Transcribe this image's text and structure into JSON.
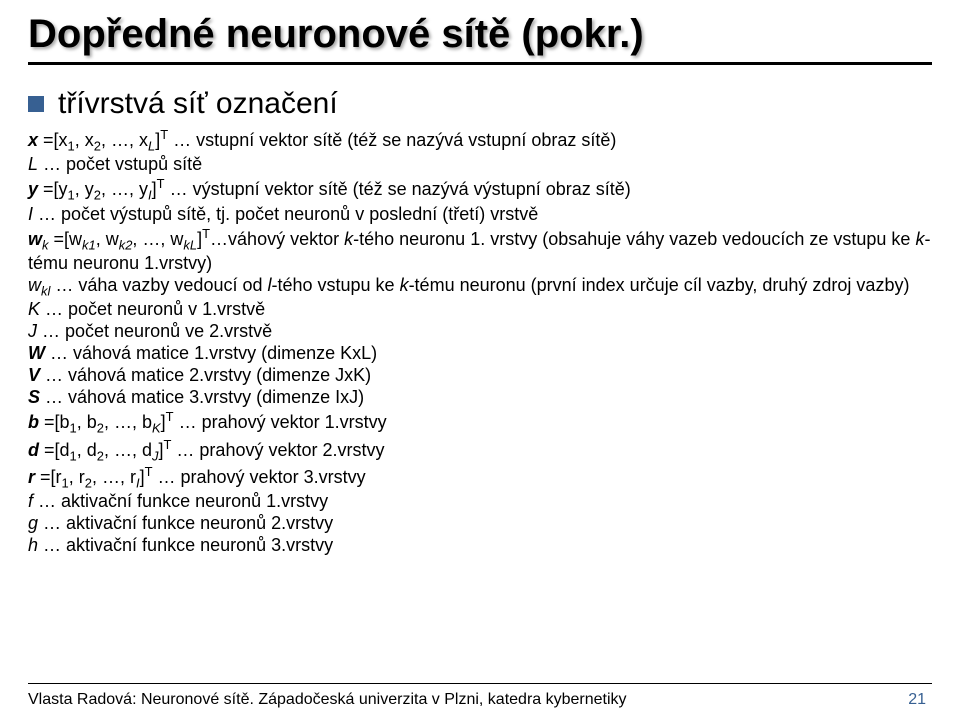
{
  "colors": {
    "bullet": "#376092",
    "pageNumber": "#376092",
    "text": "#000000",
    "background": "#ffffff"
  },
  "typography": {
    "titleFontSize": 40,
    "subtitleFontSize": 30,
    "bodyFontSize": 18,
    "footerFontSize": 16
  },
  "title": "Dopředné neuronové sítě (pokr.)",
  "subtitle": "třívrstvá síť označení",
  "lines": {
    "x_pre": "x",
    "x_sub": "=[x",
    "x_sub1": "1",
    "x_mid": ", x",
    "x_sub2": "2",
    "x_mid2": ", …, x",
    "x_subL": "L",
    "x_sup": "T",
    "x_post": " … vstupní vektor sítě (též se nazývá vstupní obraz sítě)",
    "L_sym": "L",
    "L_post": " … počet vstupů sítě",
    "y_pre": "y",
    "y_sub": "=[y",
    "y_sub1": "1",
    "y_mid": ", y",
    "y_sub2": "2",
    "y_mid2": ", …, y",
    "y_subI": "I",
    "y_sup": "T",
    "y_post": " … výstupní vektor sítě (též se nazývá výstupní obraz sítě)",
    "I_sym": "I",
    "I_post": " … počet výstupů sítě, tj. počet neuronů v poslední (třetí) vrstvě",
    "wk_pre": "w",
    "wk_k": "k",
    "wk_eq": " =[w",
    "wk_k1": "k1",
    "wk_mid": ", w",
    "wk_k2": "k2",
    "wk_mid2": ", …, w",
    "wk_kL": "kL",
    "wk_sup": "T",
    "wk_post1": "…váhový vektor ",
    "wk_kth": "k",
    "wk_post2": "-tého neuronu 1. vrstvy (obsahuje váhy vazeb vedoucích ze vstupu ke ",
    "wk_kth2": "k",
    "wk_post3": "-tému neuronu 1.vrstvy)",
    "wkl_pre": "w",
    "wkl_kl": "kl",
    "wkl_post1": " … váha vazby vedoucí od ",
    "wkl_l": "l",
    "wkl_post2": "-tého vstupu ke ",
    "wkl_k": "k",
    "wkl_post3": "-tému neuronu (první index určuje cíl vazby, druhý zdroj vazby)",
    "K_sym": "K",
    "K_post": " … počet neuronů v 1.vrstvě",
    "J_sym": "J",
    "J_post": " … počet neuronů ve 2.vrstvě",
    "W_sym": "W",
    "W_post": " … váhová matice 1.vrstvy (dimenze KxL)",
    "V_sym": "V",
    "V_post": " … váhová matice 2.vrstvy (dimenze JxK)",
    "S_sym": "S",
    "S_post": " … váhová matice 3.vrstvy (dimenze IxJ)",
    "b_pre": "b",
    "b_eq": " =[b",
    "b_1": "1",
    "b_mid": ", b",
    "b_2": "2",
    "b_mid2": ", …, b",
    "b_K": "K",
    "b_sup": "T",
    "b_post": " … prahový vektor 1.vrstvy",
    "d_pre": "d",
    "d_eq": " =[d",
    "d_1": "1",
    "d_mid": ", d",
    "d_2": "2",
    "d_mid2": ", …, d",
    "d_J": "J",
    "d_sup": "T",
    "d_post": " … prahový vektor 2.vrstvy",
    "r_pre": "r",
    "r_eq": " =[r",
    "r_1": "1",
    "r_mid": ", r",
    "r_2": "2",
    "r_mid2": ", …, r",
    "r_I": "I",
    "r_sup": "T",
    "r_post": " … prahový vektor 3.vrstvy",
    "f_sym": "f",
    "f_post": " … aktivační funkce neuronů 1.vrstvy",
    "g_sym": "g",
    "g_post": " … aktivační funkce neuronů 2.vrstvy",
    "h_sym": "h",
    "h_post": " … aktivační funkce neuronů 3.vrstvy"
  },
  "footer": {
    "text": "Vlasta Radová: Neuronové sítě. Západočeská univerzita v Plzni, katedra kybernetiky",
    "page": "21"
  }
}
